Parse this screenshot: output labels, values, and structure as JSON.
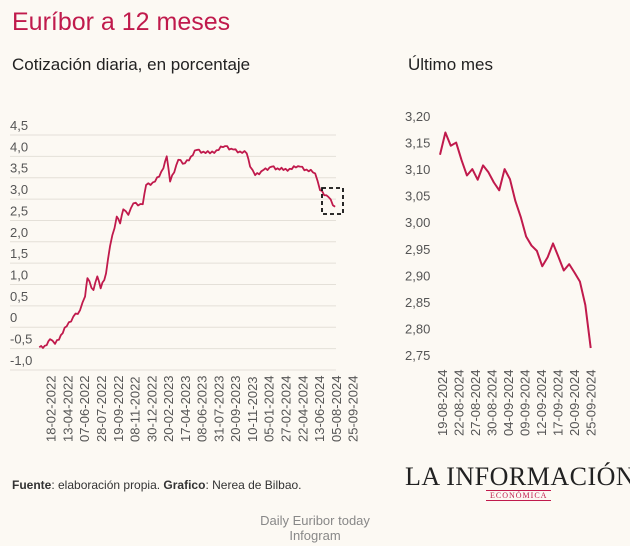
{
  "title": "Euríbor a 12 meses",
  "footer": {
    "source_label": "Fuente",
    "source_text": ": elaboración propia. ",
    "graphic_label": "Grafico",
    "graphic_text": ": Nerea de Bilbao."
  },
  "logo": {
    "name": "LA INFORMACIÓN",
    "sub": "ECONÓMICA"
  },
  "credits": {
    "line1": "Daily Euribor today",
    "line2": "Infogram"
  },
  "colors": {
    "line": "#c01a4c",
    "title": "#c01a4c",
    "background": "#fcf9f3"
  },
  "chart_data": [
    {
      "type": "line",
      "title": "Cotización diaria, en porcentaje",
      "ylim": [
        -1.0,
        4.5
      ],
      "yticks": [
        "-1,0",
        "-0,5",
        "0",
        "0,5",
        "1,0",
        "1,5",
        "2,0",
        "2,5",
        "3,0",
        "3,5",
        "4,0",
        "4,5"
      ],
      "ytick_values": [
        -1.0,
        -0.5,
        0,
        0.5,
        1.0,
        1.5,
        2.0,
        2.5,
        3.0,
        3.5,
        4.0,
        4.5
      ],
      "xticks": [
        "18-02-2022",
        "13-04-2022",
        "07-06-2022",
        "28-07-2022",
        "19-09-2022",
        "08-11-2022",
        "30-12-2022",
        "20-02-2023",
        "17-04-2023",
        "08-06-2023",
        "31-07-2023",
        "20-09-2023",
        "10-11-2023",
        "05-01-2024",
        "27-02-2024",
        "22-04-2024",
        "13-06-2024",
        "05-08-2024",
        "25-09-2024"
      ],
      "grid": true,
      "x_unit": "tick index",
      "points": [
        [
          -0.74,
          -0.47
        ],
        [
          -0.3,
          -0.42
        ],
        [
          -0.1,
          -0.28
        ],
        [
          0.2,
          -0.39
        ],
        [
          0.89,
          0.02
        ],
        [
          1.29,
          0.25
        ],
        [
          1.69,
          0.4
        ],
        [
          1.99,
          0.72
        ],
        [
          2.13,
          1.15
        ],
        [
          2.49,
          0.87
        ],
        [
          2.72,
          1.19
        ],
        [
          2.92,
          0.91
        ],
        [
          3.24,
          1.26
        ],
        [
          3.48,
          1.9
        ],
        [
          3.88,
          2.59
        ],
        [
          4.08,
          2.43
        ],
        [
          4.27,
          2.76
        ],
        [
          4.57,
          2.63
        ],
        [
          4.87,
          2.9
        ],
        [
          5.43,
          2.88
        ],
        [
          5.63,
          3.33
        ],
        [
          6.16,
          3.41
        ],
        [
          6.66,
          3.72
        ],
        [
          6.86,
          4.0
        ],
        [
          7.06,
          3.41
        ],
        [
          7.55,
          3.92
        ],
        [
          7.95,
          3.84
        ],
        [
          8.65,
          4.15
        ],
        [
          9.44,
          4.07
        ],
        [
          10.34,
          4.24
        ],
        [
          10.83,
          4.16
        ],
        [
          11.63,
          4.07
        ],
        [
          11.83,
          3.76
        ],
        [
          12.13,
          3.56
        ],
        [
          12.62,
          3.68
        ],
        [
          13.12,
          3.76
        ],
        [
          13.82,
          3.68
        ],
        [
          14.81,
          3.76
        ],
        [
          15.71,
          3.6
        ],
        [
          16.0,
          3.21
        ],
        [
          16.5,
          3.05
        ],
        [
          16.9,
          2.82
        ]
      ],
      "highlight_box": "last month"
    },
    {
      "type": "line",
      "title": "Último mes",
      "ylim": [
        2.75,
        3.2
      ],
      "yticks": [
        "2,75",
        "2,80",
        "2,85",
        "2,90",
        "2,95",
        "3,00",
        "3,05",
        "3,10",
        "3,15",
        "3,20"
      ],
      "ytick_values": [
        2.75,
        2.8,
        2.85,
        2.9,
        2.95,
        3.0,
        3.05,
        3.1,
        3.15,
        3.2
      ],
      "xticks": [
        "19-08-2024",
        "22-08-2024",
        "27-08-2024",
        "30-08-2024",
        "04-09-2024",
        "09-09-2024",
        "12-09-2024",
        "17-09-2024",
        "20-09-2024",
        "25-09-2024"
      ],
      "grid": false,
      "values": [
        3.127,
        3.169,
        3.144,
        3.15,
        3.117,
        3.088,
        3.1,
        3.08,
        3.107,
        3.094,
        3.075,
        3.06,
        3.1,
        3.081,
        3.04,
        3.01,
        2.973,
        2.956,
        2.946,
        2.917,
        2.934,
        2.96,
        2.935,
        2.909,
        2.921,
        2.905,
        2.888,
        2.844,
        2.763
      ]
    }
  ]
}
